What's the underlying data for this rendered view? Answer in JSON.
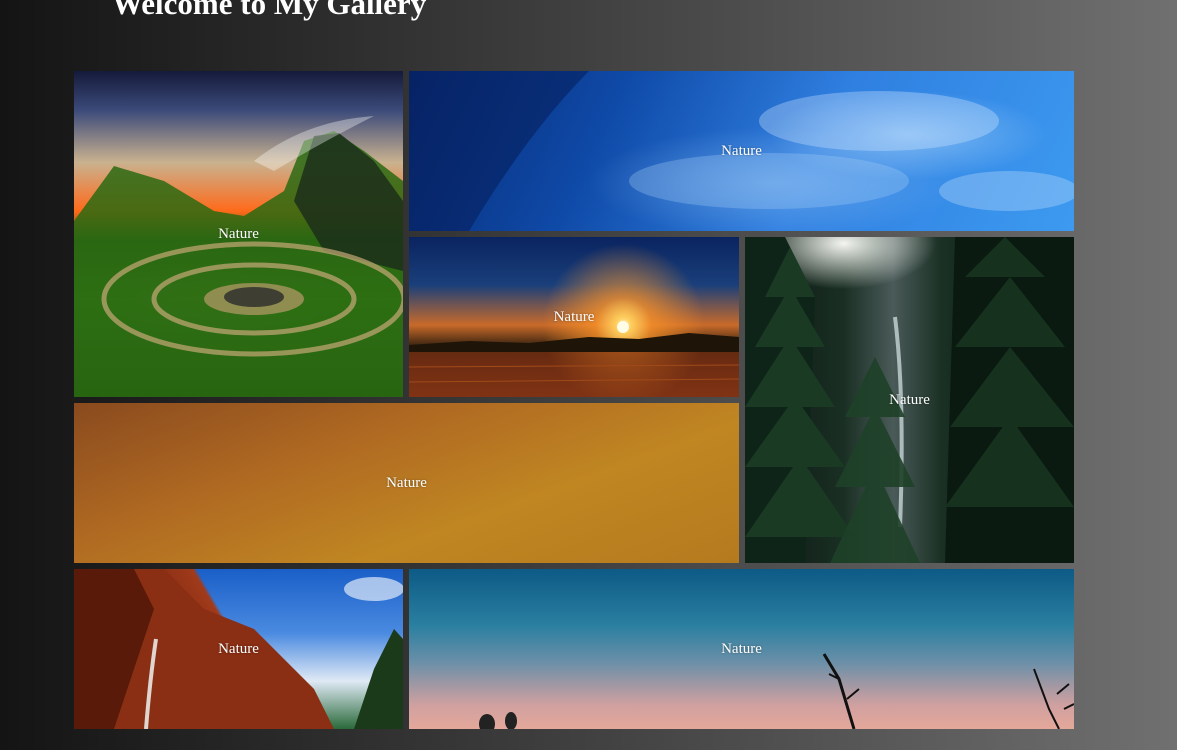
{
  "header": {
    "title": "Welcome to My Gallery"
  },
  "gallery": {
    "tiles": [
      {
        "label": "Nature",
        "icon": "landscape-photo-icon",
        "scene": "green-hills-spiral",
        "accent": "#3f8a1a"
      },
      {
        "label": "Nature",
        "icon": "landscape-photo-icon",
        "scene": "blue-sky-clouds",
        "accent": "#2f7fe0"
      },
      {
        "label": "Nature",
        "icon": "landscape-photo-icon",
        "scene": "sunset-field",
        "accent": "#ff8a2a"
      },
      {
        "label": "Nature",
        "icon": "landscape-photo-icon",
        "scene": "forest-waterfall",
        "accent": "#1a3024"
      },
      {
        "label": "Nature",
        "icon": "landscape-photo-icon",
        "scene": "amber-sky",
        "accent": "#c08622"
      },
      {
        "label": "Nature",
        "icon": "landscape-photo-icon",
        "scene": "canyon-waterfall",
        "accent": "#a03a1a"
      },
      {
        "label": "Nature",
        "icon": "landscape-photo-icon",
        "scene": "dusk-silhouette",
        "accent": "#2a7fa0"
      }
    ]
  }
}
